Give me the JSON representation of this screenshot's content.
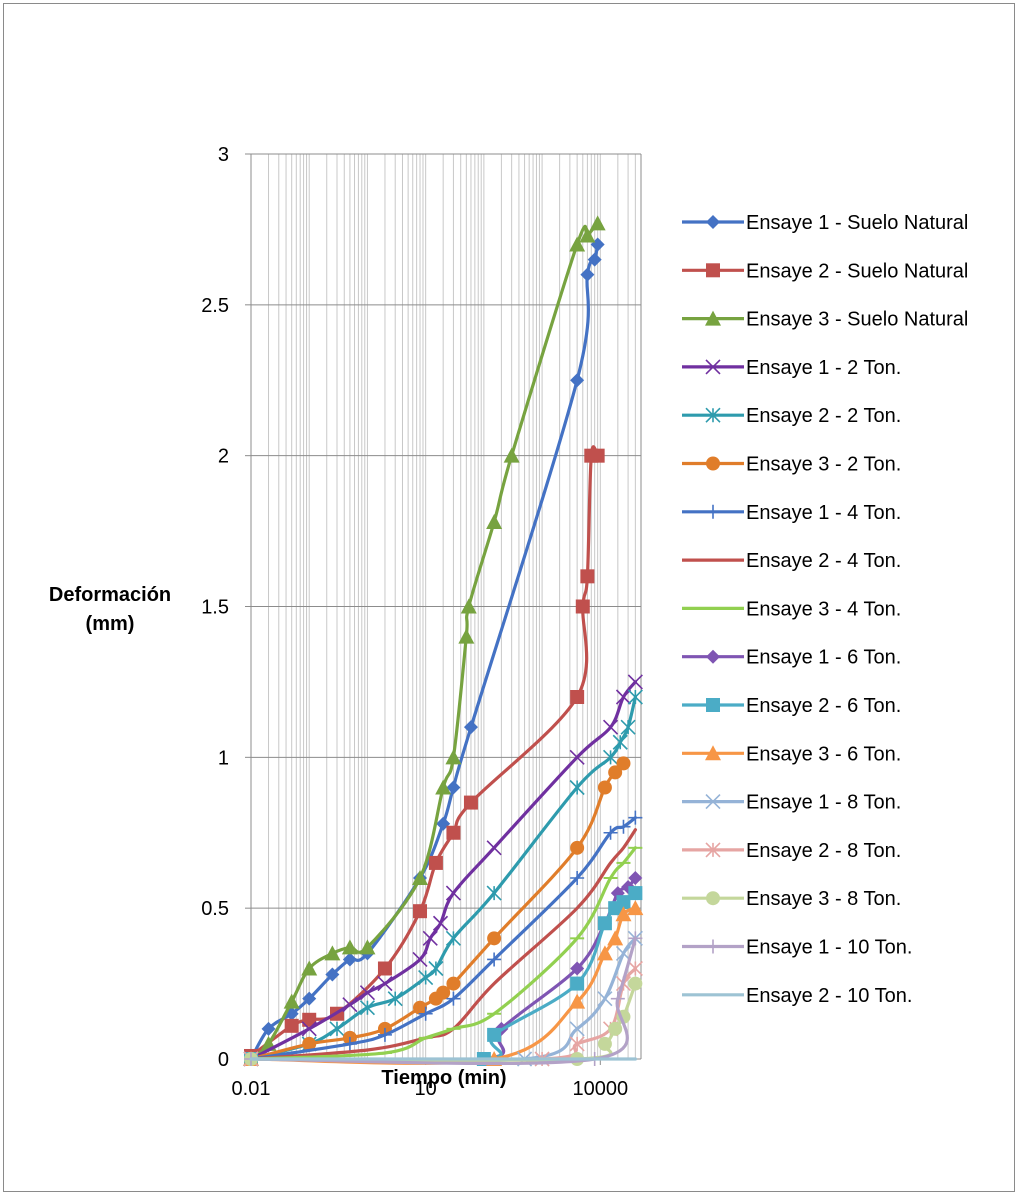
{
  "chart_data": {
    "type": "line",
    "title": "",
    "xlabel": "Tiempo (min)",
    "ylabel_lines": [
      "Deformación",
      "(mm)"
    ],
    "x_scale": "log",
    "xlim": [
      0.01,
      50000
    ],
    "ylim": [
      0,
      3
    ],
    "x_ticks": [
      "0.01",
      "10",
      "10000"
    ],
    "y_ticks": [
      "0",
      "0.5",
      "1",
      "1.5",
      "2",
      "2.5",
      "3"
    ],
    "grid": true,
    "legend_position": "right",
    "series": [
      {
        "name": "Ensaye 1 - Suelo Natural",
        "color": "#4472c4",
        "marker": "diamond",
        "points": [
          [
            0.01,
            0
          ],
          [
            0.02,
            0.1
          ],
          [
            0.05,
            0.15
          ],
          [
            0.1,
            0.2
          ],
          [
            0.25,
            0.28
          ],
          [
            0.5,
            0.33
          ],
          [
            1,
            0.35
          ],
          [
            8,
            0.6
          ],
          [
            20,
            0.78
          ],
          [
            30,
            0.9
          ],
          [
            60,
            1.1
          ],
          [
            4000,
            2.25
          ],
          [
            6000,
            2.6
          ],
          [
            8000,
            2.65
          ],
          [
            9000,
            2.7
          ]
        ]
      },
      {
        "name": "Ensaye 2 - Suelo Natural",
        "color": "#c0504d",
        "marker": "square",
        "points": [
          [
            0.01,
            0.01
          ],
          [
            0.05,
            0.11
          ],
          [
            0.1,
            0.13
          ],
          [
            0.3,
            0.15
          ],
          [
            2,
            0.3
          ],
          [
            8,
            0.49
          ],
          [
            15,
            0.65
          ],
          [
            30,
            0.75
          ],
          [
            60,
            0.85
          ],
          [
            4000,
            1.2
          ],
          [
            5000,
            1.5
          ],
          [
            6000,
            1.6
          ],
          [
            7000,
            2
          ],
          [
            9000,
            2
          ]
        ]
      },
      {
        "name": "Ensaye 3 - Suelo Natural",
        "color": "#77a340",
        "marker": "triangle",
        "points": [
          [
            0.01,
            0
          ],
          [
            0.02,
            0.05
          ],
          [
            0.05,
            0.19
          ],
          [
            0.1,
            0.3
          ],
          [
            0.25,
            0.35
          ],
          [
            0.5,
            0.37
          ],
          [
            1,
            0.37
          ],
          [
            8,
            0.6
          ],
          [
            20,
            0.9
          ],
          [
            30,
            1
          ],
          [
            50,
            1.4
          ],
          [
            55,
            1.5
          ],
          [
            150,
            1.78
          ],
          [
            300,
            2
          ],
          [
            4000,
            2.7
          ],
          [
            6000,
            2.73
          ],
          [
            9000,
            2.77
          ]
        ]
      },
      {
        "name": "Ensaye 1 - 2 Ton.",
        "color": "#7030a0",
        "marker": "x",
        "points": [
          [
            0.01,
            0
          ],
          [
            0.1,
            0.1
          ],
          [
            0.5,
            0.18
          ],
          [
            1,
            0.22
          ],
          [
            2,
            0.25
          ],
          [
            8,
            0.33
          ],
          [
            12,
            0.4
          ],
          [
            18,
            0.45
          ],
          [
            30,
            0.55
          ],
          [
            150,
            0.7
          ],
          [
            4000,
            1
          ],
          [
            15000,
            1.1
          ],
          [
            25000,
            1.2
          ],
          [
            40000,
            1.25
          ]
        ]
      },
      {
        "name": "Ensaye 2 - 2 Ton.",
        "color": "#2e9bad",
        "marker": "asterisk",
        "points": [
          [
            0.01,
            0
          ],
          [
            0.1,
            0.05
          ],
          [
            0.3,
            0.1
          ],
          [
            1,
            0.17
          ],
          [
            3,
            0.2
          ],
          [
            10,
            0.27
          ],
          [
            15,
            0.3
          ],
          [
            30,
            0.4
          ],
          [
            150,
            0.55
          ],
          [
            4000,
            0.9
          ],
          [
            15000,
            1
          ],
          [
            22000,
            1.05
          ],
          [
            30000,
            1.1
          ],
          [
            40000,
            1.2
          ]
        ]
      },
      {
        "name": "Ensaye 3 - 2 Ton.",
        "color": "#e07d2a",
        "marker": "circle",
        "points": [
          [
            0.01,
            0
          ],
          [
            0.1,
            0.05
          ],
          [
            0.5,
            0.07
          ],
          [
            2,
            0.1
          ],
          [
            8,
            0.17
          ],
          [
            15,
            0.2
          ],
          [
            20,
            0.22
          ],
          [
            30,
            0.25
          ],
          [
            150,
            0.4
          ],
          [
            4000,
            0.7
          ],
          [
            12000,
            0.9
          ],
          [
            18000,
            0.95
          ],
          [
            25000,
            0.98
          ]
        ]
      },
      {
        "name": "Ensaye 1 - 4 Ton.",
        "color": "#4472c4",
        "marker": "plus",
        "points": [
          [
            0.01,
            0
          ],
          [
            0.5,
            0.05
          ],
          [
            2,
            0.08
          ],
          [
            10,
            0.15
          ],
          [
            30,
            0.2
          ],
          [
            150,
            0.33
          ],
          [
            4000,
            0.6
          ],
          [
            15000,
            0.75
          ],
          [
            25000,
            0.77
          ],
          [
            40000,
            0.8
          ]
        ]
      },
      {
        "name": "Ensaye 2 - 4 Ton.",
        "color": "#c0504d",
        "marker": "none",
        "points": [
          [
            0.01,
            0
          ],
          [
            1,
            0.03
          ],
          [
            10,
            0.07
          ],
          [
            30,
            0.1
          ],
          [
            150,
            0.25
          ],
          [
            4000,
            0.5
          ],
          [
            15000,
            0.65
          ],
          [
            25000,
            0.7
          ],
          [
            40000,
            0.76
          ]
        ]
      },
      {
        "name": "Ensaye 3 - 4 Ton.",
        "color": "#92d050",
        "marker": "line",
        "points": [
          [
            0.01,
            0
          ],
          [
            2,
            0.02
          ],
          [
            10,
            0.07
          ],
          [
            30,
            0.1
          ],
          [
            150,
            0.15
          ],
          [
            4000,
            0.4
          ],
          [
            15000,
            0.6
          ],
          [
            25000,
            0.65
          ],
          [
            40000,
            0.7
          ]
        ]
      },
      {
        "name": "Ensaye 1 - 6 Ton.",
        "color": "#7f55b3",
        "marker": "diamond",
        "points": [
          [
            0.01,
            0
          ],
          [
            100,
            0
          ],
          [
            200,
            0.1
          ],
          [
            4000,
            0.3
          ],
          [
            12000,
            0.45
          ],
          [
            20000,
            0.55
          ],
          [
            30000,
            0.57
          ],
          [
            40000,
            0.6
          ]
        ]
      },
      {
        "name": "Ensaye 2 - 6 Ton.",
        "color": "#4bacc6",
        "marker": "square",
        "points": [
          [
            0.01,
            0
          ],
          [
            100,
            0
          ],
          [
            150,
            0.08
          ],
          [
            4000,
            0.25
          ],
          [
            12000,
            0.45
          ],
          [
            18000,
            0.5
          ],
          [
            25000,
            0.52
          ],
          [
            40000,
            0.55
          ]
        ]
      },
      {
        "name": "Ensaye 3 - 6 Ton.",
        "color": "#f79646",
        "marker": "triangle",
        "points": [
          [
            0.01,
            0
          ],
          [
            150,
            0
          ],
          [
            4000,
            0.19
          ],
          [
            12000,
            0.35
          ],
          [
            18000,
            0.4
          ],
          [
            25000,
            0.48
          ],
          [
            40000,
            0.5
          ]
        ]
      },
      {
        "name": "Ensaye 1 - 8 Ton.",
        "color": "#95b3d7",
        "marker": "x",
        "points": [
          [
            0.01,
            0
          ],
          [
            500,
            0
          ],
          [
            4000,
            0.1
          ],
          [
            12000,
            0.2
          ],
          [
            25000,
            0.35
          ],
          [
            40000,
            0.4
          ]
        ]
      },
      {
        "name": "Ensaye 2 - 8 Ton.",
        "color": "#e6a5a3",
        "marker": "asterisk",
        "points": [
          [
            0.01,
            0
          ],
          [
            1000,
            0
          ],
          [
            4000,
            0.05
          ],
          [
            15000,
            0.1
          ],
          [
            25000,
            0.25
          ],
          [
            40000,
            0.3
          ]
        ]
      },
      {
        "name": "Ensaye 3 - 8 Ton.",
        "color": "#c4d79b",
        "marker": "circle",
        "points": [
          [
            0.01,
            0
          ],
          [
            4000,
            0
          ],
          [
            12000,
            0.05
          ],
          [
            18000,
            0.1
          ],
          [
            25000,
            0.14
          ],
          [
            40000,
            0.25
          ]
        ]
      },
      {
        "name": "Ensaye  1 -  10 Ton.",
        "color": "#b3a2c7",
        "marker": "plus",
        "points": [
          [
            0.01,
            0
          ],
          [
            8000,
            0
          ],
          [
            20000,
            0.2
          ],
          [
            40000,
            0.4
          ]
        ]
      },
      {
        "name": "Ensaye  2 -  10 Ton.",
        "color": "#9dc3d4",
        "marker": "none",
        "points": [
          [
            0.01,
            0
          ],
          [
            40000,
            0
          ]
        ]
      }
    ]
  }
}
